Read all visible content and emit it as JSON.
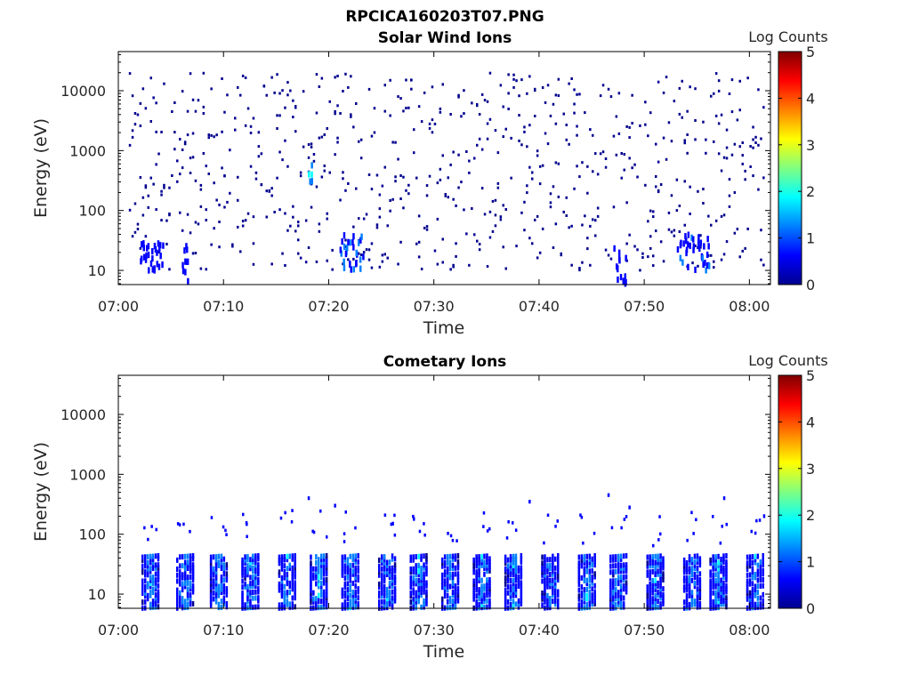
{
  "figure_title": "RPCICA160203T07.PNG",
  "colorbar_label": "Log Counts",
  "colors": {
    "colormap": [
      "#00008f",
      "#0000ff",
      "#0080ff",
      "#00ffff",
      "#80ff80",
      "#ffff00",
      "#ff8000",
      "#ff0000",
      "#800000"
    ],
    "frame": "#000000",
    "background": "#ffffff"
  },
  "chart_data": [
    {
      "type": "heatmap",
      "title": "Solar Wind Ions",
      "xlabel": "Time",
      "ylabel": "Energy (eV)",
      "x_ticks": [
        "07:00",
        "07:10",
        "07:20",
        "07:30",
        "07:40",
        "07:50",
        "08:00"
      ],
      "y_ticks": [
        "10",
        "100",
        "1000",
        "10000"
      ],
      "y_scale": "log",
      "xlim_minutes_after_0700": [
        0,
        62
      ],
      "ylim_eV": [
        5.8,
        45000
      ],
      "colorbar": {
        "label": "Log Counts",
        "range": [
          0,
          5
        ],
        "ticks": [
          "0",
          "1",
          "2",
          "3",
          "4",
          "5"
        ]
      },
      "features": [
        {
          "t": [
            2,
            4
          ],
          "e": [
            10,
            30
          ],
          "log_counts": 0.8
        },
        {
          "t": [
            6,
            6.5
          ],
          "e": [
            6,
            30
          ],
          "log_counts": 0.7
        },
        {
          "t": [
            18,
            18.4
          ],
          "e": [
            300,
            600
          ],
          "log_counts": 1.6
        },
        {
          "t": [
            21,
            23
          ],
          "e": [
            10,
            40
          ],
          "log_counts": 1.0
        },
        {
          "t": [
            47,
            48
          ],
          "e": [
            6,
            25
          ],
          "log_counts": 0.7
        },
        {
          "t": [
            53,
            56
          ],
          "e": [
            10,
            40
          ],
          "log_counts": 0.9
        }
      ],
      "scatter_density": {
        "e_range": [
          10,
          20000
        ],
        "log_counts": 0.3
      }
    },
    {
      "type": "heatmap",
      "title": "Cometary Ions",
      "xlabel": "Time",
      "ylabel": "Energy (eV)",
      "x_ticks": [
        "07:00",
        "07:10",
        "07:20",
        "07:30",
        "07:40",
        "07:50",
        "08:00"
      ],
      "y_ticks": [
        "10",
        "100",
        "1000",
        "10000"
      ],
      "y_scale": "log",
      "xlim_minutes_after_0700": [
        0,
        62
      ],
      "ylim_eV": [
        5.8,
        45000
      ],
      "colorbar": {
        "label": "Log Counts",
        "range": [
          0,
          5
        ],
        "ticks": [
          "0",
          "1",
          "2",
          "3",
          "4",
          "5"
        ]
      },
      "bursts_minutes": [
        3,
        6.3,
        9.5,
        12.5,
        16,
        19,
        22,
        25.5,
        28.5,
        31.5,
        34.5,
        37.5,
        41,
        44.5,
        47.5,
        51,
        54.5,
        57,
        60.5
      ],
      "burst_energy_eV": [
        6,
        45
      ],
      "burst_peak_log_counts": 1.7,
      "scatter_points": [
        {
          "t": 18,
          "e": 400
        },
        {
          "t": 20.5,
          "e": 300
        },
        {
          "t": 26,
          "e": 150
        },
        {
          "t": 28,
          "e": 180
        },
        {
          "t": 39,
          "e": 350
        },
        {
          "t": 46.5,
          "e": 450
        },
        {
          "t": 48.5,
          "e": 280
        },
        {
          "t": 57.5,
          "e": 400
        },
        {
          "t": 61.3,
          "e": 200
        }
      ]
    }
  ]
}
